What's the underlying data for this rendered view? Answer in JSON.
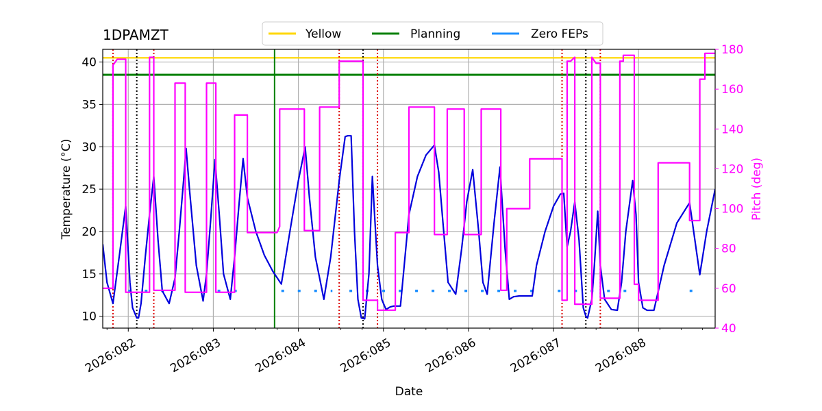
{
  "chart_data": {
    "type": "line",
    "title": "1DPAMZT",
    "xlabel": "Date",
    "ylabel_left": "Temperature ($^\\circ$C)",
    "ylabel_left_text": "Temperature (°C)",
    "ylabel_right": "Pitch (deg)",
    "x_range": [
      81.7,
      88.9
    ],
    "y_left_range": [
      8.6,
      41.5
    ],
    "y_right_range": [
      40,
      180
    ],
    "x_ticks": [
      {
        "value": 82,
        "label": "2026:082"
      },
      {
        "value": 83,
        "label": "2026:083"
      },
      {
        "value": 84,
        "label": "2026:084"
      },
      {
        "value": 85,
        "label": "2026:085"
      },
      {
        "value": 86,
        "label": "2026:086"
      },
      {
        "value": 87,
        "label": "2026:087"
      },
      {
        "value": 88,
        "label": "2026:088"
      }
    ],
    "y_left_ticks": [
      10,
      15,
      20,
      25,
      30,
      35,
      40
    ],
    "y_right_ticks": [
      40,
      60,
      80,
      100,
      120,
      140,
      160,
      180
    ],
    "grid": true,
    "legend": {
      "placement": "top-center",
      "entries": [
        {
          "label": "Yellow",
          "color": "#ffd700"
        },
        {
          "label": "Planning",
          "color": "#008000"
        },
        {
          "label": "Zero FEPs",
          "color": "#1e90ff"
        }
      ]
    },
    "limits": {
      "yellow": {
        "value": 40.5,
        "color": "#ffd700"
      },
      "planning": {
        "value": 38.5,
        "color": "#008000"
      }
    },
    "planning_vline": {
      "x": 83.72,
      "color": "#008000"
    },
    "red_dotted_lines": [
      81.82,
      82.3,
      84.48,
      84.93,
      87.1,
      87.55
    ],
    "black_dotted_lines": [
      82.1,
      84.76,
      87.38
    ],
    "zero_feps_y": 13.0,
    "zero_feps_segments": [
      [
        82.0,
        82.55
      ],
      [
        83.05,
        83.4
      ],
      [
        83.8,
        84.4
      ],
      [
        84.6,
        86.85
      ],
      [
        87.05,
        87.9
      ],
      [
        88.6,
        88.75
      ]
    ],
    "series": [
      {
        "name": "Temperature",
        "axis": "left",
        "color": "#0000dd",
        "x": [
          81.7,
          81.75,
          81.82,
          81.9,
          81.97,
          82.02,
          82.05,
          82.1,
          82.12,
          82.15,
          82.2,
          82.25,
          82.3,
          82.35,
          82.4,
          82.48,
          82.55,
          82.6,
          82.65,
          82.68,
          82.72,
          82.8,
          82.88,
          82.92,
          82.97,
          83.02,
          83.07,
          83.12,
          83.2,
          83.25,
          83.3,
          83.35,
          83.4,
          83.5,
          83.6,
          83.7,
          83.8,
          83.9,
          84.0,
          84.08,
          84.13,
          84.2,
          84.3,
          84.38,
          84.48,
          84.55,
          84.58,
          84.62,
          84.66,
          84.7,
          84.74,
          84.78,
          84.83,
          84.87,
          84.93,
          84.98,
          85.03,
          85.08,
          85.12,
          85.2,
          85.3,
          85.4,
          85.5,
          85.6,
          85.65,
          85.7,
          85.76,
          85.85,
          85.92,
          85.98,
          86.05,
          86.12,
          86.17,
          86.22,
          86.3,
          86.37,
          86.43,
          86.48,
          86.53,
          86.6,
          86.7,
          86.75,
          86.8,
          86.9,
          87.0,
          87.08,
          87.12,
          87.16,
          87.2,
          87.25,
          87.3,
          87.35,
          87.38,
          87.4,
          87.45,
          87.48,
          87.52,
          87.55,
          87.6,
          87.68,
          87.75,
          87.8,
          87.85,
          87.93,
          87.97,
          88.0,
          88.05,
          88.1,
          88.18,
          88.3,
          88.45,
          88.6,
          88.72,
          88.8,
          88.9
        ],
        "values": [
          18.5,
          14.0,
          11.5,
          17.5,
          23.0,
          14.0,
          11.0,
          9.8,
          9.8,
          11.5,
          17.0,
          22.0,
          26.5,
          19.0,
          13.0,
          11.5,
          14.5,
          20.0,
          26.0,
          29.8,
          25.0,
          16.0,
          11.8,
          15.0,
          21.5,
          28.5,
          22.0,
          15.0,
          12.0,
          17.0,
          23.0,
          28.6,
          24.0,
          20.0,
          17.2,
          15.3,
          13.8,
          20.0,
          26.0,
          30.0,
          24.0,
          17.0,
          12.0,
          17.0,
          26.0,
          31.2,
          31.3,
          31.3,
          20.0,
          12.0,
          9.8,
          9.7,
          15.0,
          26.5,
          16.0,
          12.0,
          10.8,
          11.1,
          11.2,
          11.2,
          22.0,
          26.5,
          29.0,
          30.2,
          27.0,
          21.0,
          14.0,
          12.6,
          18.0,
          23.5,
          27.3,
          20.0,
          14.0,
          12.6,
          21.0,
          27.6,
          18.0,
          12.0,
          12.3,
          12.4,
          12.4,
          12.4,
          16.0,
          20.0,
          23.0,
          24.4,
          24.5,
          18.2,
          20.0,
          23.5,
          19.0,
          11.0,
          10.0,
          9.8,
          12.0,
          16.0,
          22.4,
          16.0,
          12.0,
          10.8,
          10.7,
          14.0,
          20.0,
          26.0,
          22.0,
          14.0,
          11.0,
          10.7,
          10.7,
          16.0,
          21.0,
          23.4,
          14.9,
          20.0,
          25.0
        ]
      },
      {
        "name": "Pitch",
        "axis": "right",
        "color": "#ff00ff",
        "x": [
          81.7,
          81.82,
          81.82,
          81.87,
          81.9,
          81.95,
          81.97,
          81.97,
          82.1,
          82.1,
          82.15,
          82.25,
          82.25,
          82.3,
          82.3,
          82.55,
          82.55,
          82.58,
          82.67,
          82.67,
          82.92,
          82.92,
          83.03,
          83.03,
          83.25,
          83.25,
          83.4,
          83.4,
          83.55,
          83.55,
          83.75,
          83.78,
          83.78,
          84.07,
          84.07,
          84.25,
          84.25,
          84.45,
          84.45,
          84.48,
          84.48,
          84.6,
          84.6,
          84.76,
          84.76,
          84.93,
          84.93,
          85.14,
          85.14,
          85.3,
          85.3,
          85.6,
          85.6,
          85.75,
          85.75,
          85.95,
          85.95,
          86.15,
          86.15,
          86.38,
          86.38,
          86.45,
          86.45,
          86.72,
          86.72,
          87.1,
          87.1,
          87.16,
          87.16,
          87.2,
          87.25,
          87.25,
          87.45,
          87.45,
          87.5,
          87.53,
          87.55,
          87.55,
          87.78,
          87.78,
          87.82,
          87.82,
          87.95,
          87.95,
          88.0,
          88.0,
          88.23,
          88.23,
          88.6,
          88.6,
          88.72,
          88.72,
          88.78,
          88.78,
          88.9
        ],
        "values": [
          60,
          60,
          172,
          175,
          175,
          175,
          175,
          58,
          58,
          58,
          58,
          58,
          176,
          176,
          59,
          59,
          163,
          163,
          163,
          58,
          58,
          163,
          163,
          58,
          58,
          147,
          147,
          88,
          88,
          88,
          88,
          91,
          150,
          150,
          89,
          89,
          151,
          151,
          151,
          151,
          174,
          174,
          174,
          174,
          54,
          54,
          49,
          49,
          88,
          88,
          151,
          151,
          87,
          87,
          150,
          150,
          87,
          87,
          150,
          150,
          59,
          59,
          100,
          100,
          125,
          125,
          54,
          54,
          174,
          174,
          176,
          52,
          52,
          176,
          173,
          173,
          173,
          55,
          55,
          174,
          174,
          177,
          177,
          62,
          62,
          54,
          54,
          123,
          123,
          94,
          94,
          165,
          165,
          178,
          178
        ]
      }
    ]
  }
}
